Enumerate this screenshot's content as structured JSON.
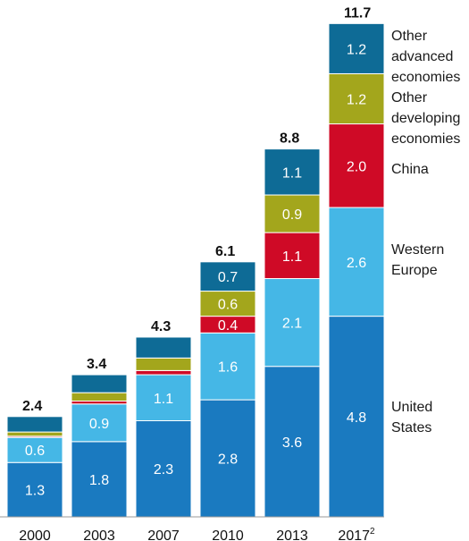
{
  "chart_data": {
    "type": "bar",
    "stacked": true,
    "categories": [
      "2000",
      "2003",
      "2007",
      "2010",
      "2013",
      "2017"
    ],
    "category_superscripts": [
      "",
      "",
      "",
      "",
      "",
      "2"
    ],
    "totals": [
      "2.4",
      "3.4",
      "4.3",
      "6.1",
      "8.8",
      "11.7"
    ],
    "series": [
      {
        "name": "United States",
        "color": "#1a7ac0",
        "values": [
          1.3,
          1.8,
          2.3,
          2.8,
          3.6,
          4.8
        ],
        "labels": [
          "1.3",
          "1.8",
          "2.3",
          "2.8",
          "3.6",
          "4.8"
        ]
      },
      {
        "name": "Western Europe",
        "color": "#45b7e6",
        "values": [
          0.6,
          0.9,
          1.1,
          1.6,
          2.1,
          2.6
        ],
        "labels": [
          "0.6",
          "0.9",
          "1.1",
          "1.6",
          "2.1",
          "2.6"
        ]
      },
      {
        "name": "China",
        "color": "#cf0a26",
        "values": [
          0.03,
          0.07,
          0.1,
          0.4,
          1.1,
          2.0
        ],
        "labels": [
          "",
          "",
          "",
          "0.4",
          "1.1",
          "2.0"
        ]
      },
      {
        "name": "Other developing economies",
        "color": "#a3a61c",
        "values": [
          0.1,
          0.2,
          0.3,
          0.6,
          0.9,
          1.2
        ],
        "labels": [
          "",
          "",
          "",
          "0.6",
          "0.9",
          "1.2"
        ]
      },
      {
        "name": "Other advanced economies",
        "color": "#0e6b96",
        "values": [
          0.37,
          0.43,
          0.5,
          0.7,
          1.1,
          1.2
        ],
        "labels": [
          "",
          "",
          "",
          "0.7",
          "1.1",
          "1.2"
        ]
      }
    ],
    "legend_lines": [
      "Other\nadvanced\neconomies",
      "Other\ndeveloping\neconomies",
      "China",
      "Western\nEurope",
      "United\nStates"
    ],
    "legend_placement": "right",
    "grid": false,
    "ylim": [
      0,
      11.7
    ]
  }
}
